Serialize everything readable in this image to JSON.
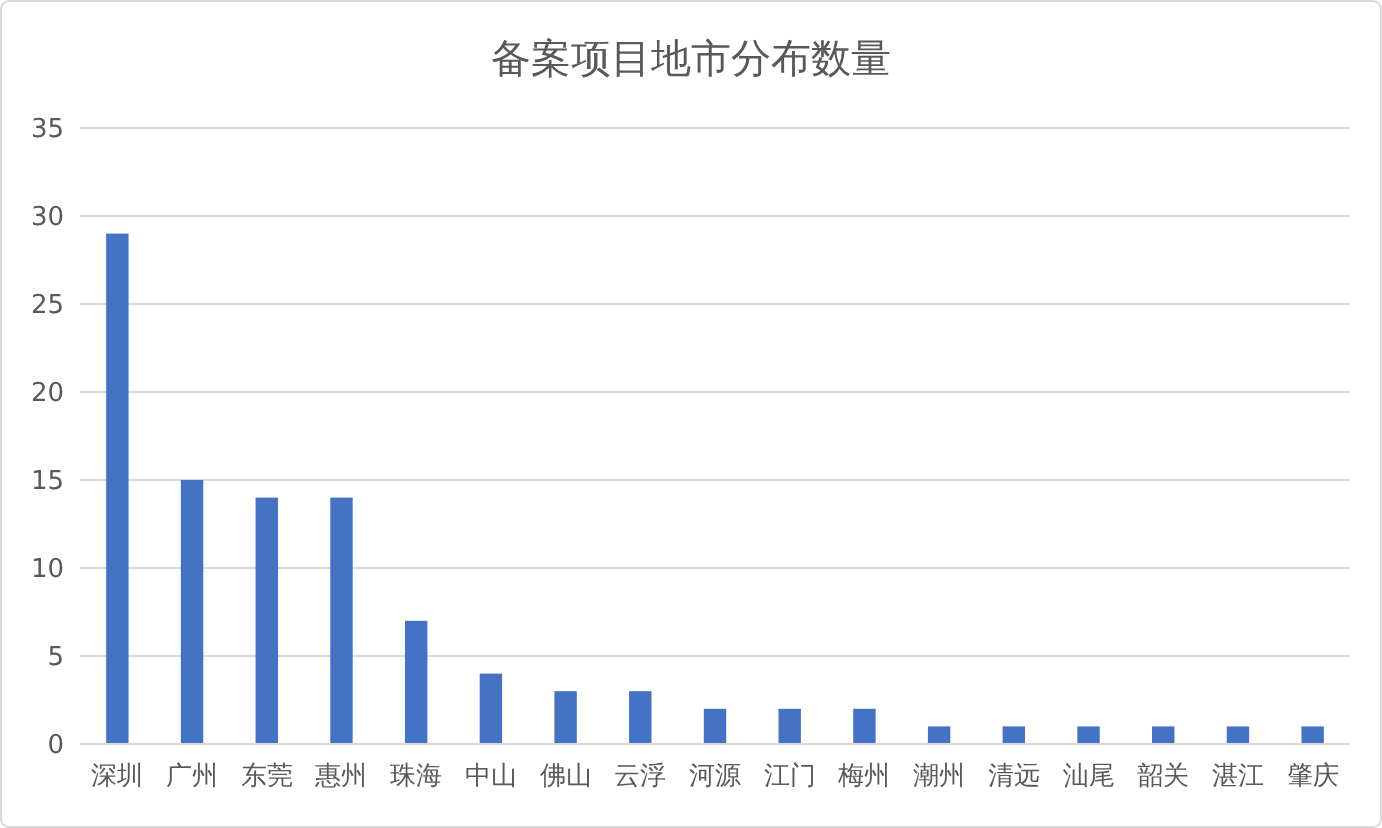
{
  "chart_data": {
    "type": "bar",
    "title": "备案项目地市分布数量",
    "categories": [
      "深圳",
      "广州",
      "东莞",
      "惠州",
      "珠海",
      "中山",
      "佛山",
      "云浮",
      "河源",
      "江门",
      "梅州",
      "潮州",
      "清远",
      "汕尾",
      "韶关",
      "湛江",
      "肇庆"
    ],
    "values": [
      29,
      15,
      14,
      14,
      7,
      4,
      3,
      3,
      2,
      2,
      2,
      1,
      1,
      1,
      1,
      1,
      1
    ],
    "color": "#4472c4",
    "ylim": [
      0,
      35
    ],
    "yticks": [
      0,
      5,
      10,
      15,
      20,
      25,
      30,
      35
    ],
    "grid": "y"
  }
}
